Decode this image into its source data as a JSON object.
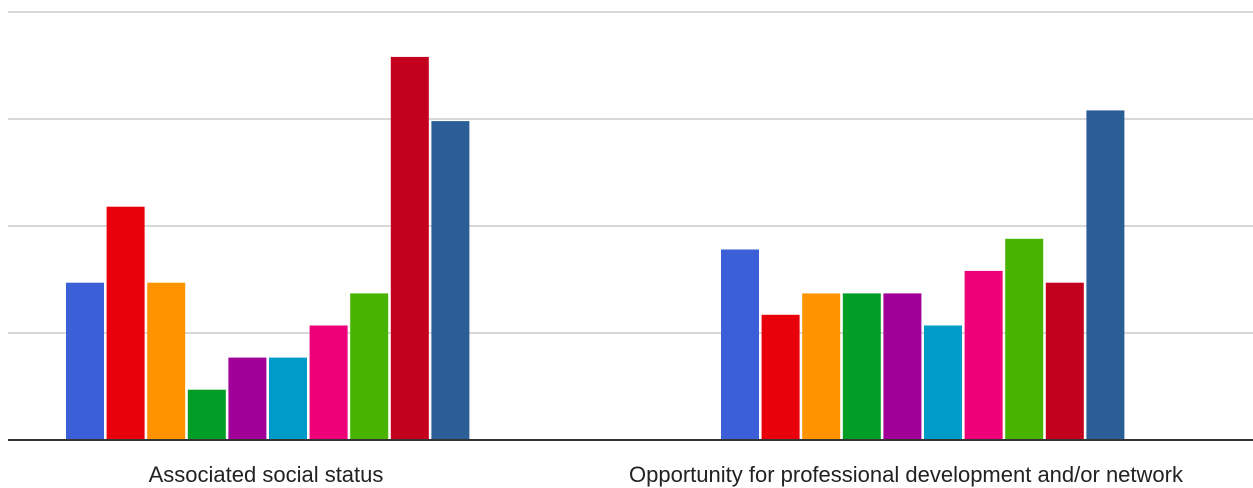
{
  "chart_data": {
    "type": "bar",
    "title": "",
    "xlabel": "",
    "ylabel": "",
    "grid": true,
    "ylim": [
      0,
      4
    ],
    "categories": [
      "Associated social status",
      "Opportunity for professional development and/or network"
    ],
    "series": [
      {
        "color": "#3b5fd6",
        "values": [
          1.47,
          1.78
        ]
      },
      {
        "color": "#e8000b",
        "values": [
          2.18,
          1.17
        ]
      },
      {
        "color": "#ff9400",
        "values": [
          1.47,
          1.37
        ]
      },
      {
        "color": "#009e26",
        "values": [
          0.47,
          1.37
        ]
      },
      {
        "color": "#a00098",
        "values": [
          0.77,
          1.37
        ]
      },
      {
        "color": "#009cc9",
        "values": [
          0.77,
          1.07
        ]
      },
      {
        "color": "#ed0078",
        "values": [
          1.07,
          1.58
        ]
      },
      {
        "color": "#48b400",
        "values": [
          1.37,
          1.88
        ]
      },
      {
        "color": "#c3001d",
        "values": [
          3.58,
          1.47
        ]
      },
      {
        "color": "#2b5d96",
        "values": [
          2.98,
          3.08
        ]
      }
    ]
  }
}
